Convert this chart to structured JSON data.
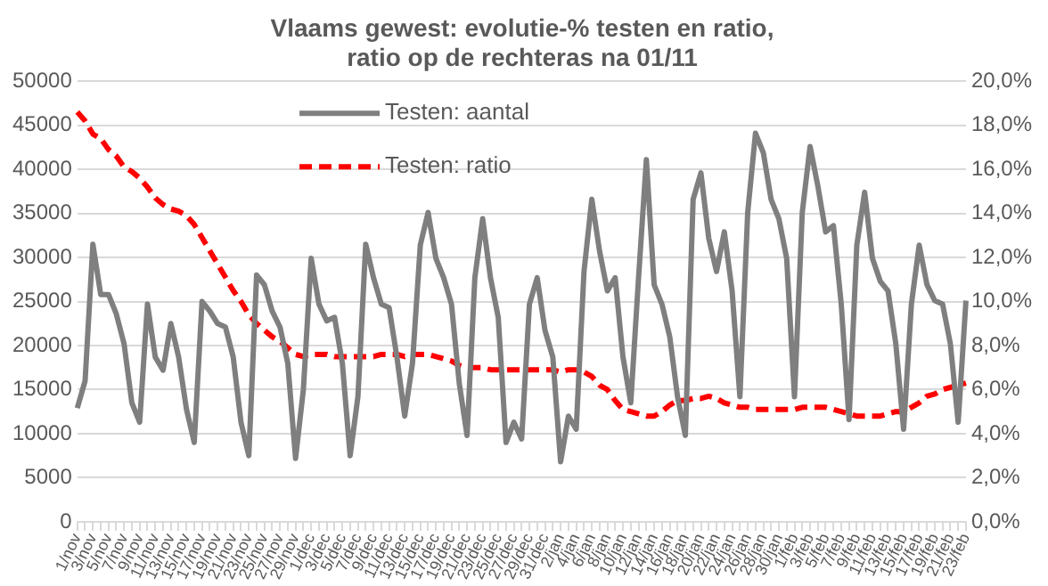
{
  "chart_data": {
    "type": "line",
    "title": "Vlaams gewest: evolutie-% testen en ratio,\nratio op de rechteras na 01/11",
    "categories": [
      "1/nov",
      null,
      "3/nov",
      null,
      "5/nov",
      null,
      "7/nov",
      null,
      "9/nov",
      null,
      "11/nov",
      null,
      "13/nov",
      null,
      "15/nov",
      null,
      "17/nov",
      null,
      "19/nov",
      null,
      "21/nov",
      null,
      "23/nov",
      null,
      "25/nov",
      null,
      "27/nov",
      null,
      "29/nov",
      null,
      "1/dec",
      null,
      "3/dec",
      null,
      "5/dec",
      null,
      "7/dec",
      null,
      "9/dec",
      null,
      "11/dec",
      null,
      "13/dec",
      null,
      "15/dec",
      null,
      "17/dec",
      null,
      "19/dec",
      null,
      "21/dec",
      null,
      "23/dec",
      null,
      "25/dec",
      null,
      "27/dec",
      null,
      "29/dec",
      null,
      "31/dec",
      null,
      "2/jan",
      null,
      "4/jan",
      null,
      "6/jan",
      null,
      "8/jan",
      null,
      "10/jan",
      null,
      "12/jan",
      null,
      "14/jan",
      null,
      "16/jan",
      null,
      "18/jan",
      null,
      "20/jan",
      null,
      "22/jan",
      null,
      "24/jan",
      null,
      "26/jan",
      null,
      "28/jan",
      null,
      "30/jan",
      null,
      "1/feb",
      null,
      "3/feb",
      null,
      "5/feb",
      null,
      "7/feb",
      null,
      "9/feb",
      null,
      "11/feb",
      null,
      "13/feb",
      null,
      "15/feb",
      null,
      "17/feb",
      null,
      "19/feb",
      null,
      "21/feb",
      null,
      "23/feb"
    ],
    "series": [
      {
        "name": "Testen: aantal",
        "color": "#7f7f7f",
        "axis": "y",
        "line_style": "solid",
        "values": [
          12900,
          16000,
          31500,
          25800,
          25800,
          23600,
          20200,
          13500,
          11300,
          24700,
          18700,
          17200,
          22500,
          18700,
          12800,
          9000,
          25000,
          23900,
          22500,
          22100,
          18700,
          11300,
          7500,
          28000,
          26900,
          23900,
          22100,
          18000,
          7200,
          15000,
          29900,
          24700,
          22800,
          23200,
          18000,
          7500,
          14200,
          31500,
          27700,
          24700,
          24300,
          18700,
          12000,
          18000,
          31400,
          35100,
          29900,
          27700,
          24700,
          15700,
          9800,
          27700,
          34400,
          27700,
          23200,
          9000,
          11300,
          9400,
          24700,
          27700,
          21700,
          18700,
          6800,
          12000,
          10500,
          28400,
          36600,
          30700,
          26200,
          27700,
          18700,
          13500,
          27700,
          41100,
          26900,
          24700,
          21000,
          14200,
          9800,
          36600,
          39600,
          32200,
          28400,
          32900,
          26200,
          14200,
          35100,
          44100,
          41900,
          36600,
          34400,
          29900,
          14200,
          35100,
          42600,
          38100,
          32900,
          33600,
          24700,
          11600,
          31400,
          37400,
          29900,
          27300,
          26200,
          20200,
          10500,
          24700,
          31400,
          26900,
          25100,
          24700,
          20200,
          11300,
          25100
        ]
      },
      {
        "name": "Testen: ratio",
        "color": "#ff0000",
        "axis": "y2",
        "line_style": "dashed",
        "values": [
          18.6,
          18.2,
          17.6,
          17.4,
          16.9,
          16.6,
          16.1,
          15.9,
          15.6,
          15.2,
          14.7,
          14.4,
          14.2,
          14.1,
          13.9,
          13.5,
          12.9,
          12.3,
          11.7,
          11.1,
          10.5,
          10.0,
          9.4,
          9.0,
          8.7,
          8.4,
          8.2,
          7.9,
          7.6,
          7.5,
          7.6,
          7.6,
          7.6,
          7.5,
          7.5,
          7.5,
          7.5,
          7.5,
          7.5,
          7.6,
          7.6,
          7.6,
          7.5,
          7.6,
          7.6,
          7.6,
          7.5,
          7.4,
          7.3,
          7.1,
          7.0,
          7.0,
          7.0,
          6.9,
          6.9,
          6.9,
          6.9,
          6.9,
          6.9,
          6.9,
          6.9,
          6.9,
          6.8,
          6.9,
          6.9,
          6.8,
          6.6,
          6.2,
          6.0,
          5.5,
          5.1,
          5.0,
          4.9,
          4.8,
          4.8,
          5.0,
          5.3,
          5.5,
          5.5,
          5.6,
          5.6,
          5.7,
          5.6,
          5.4,
          5.3,
          5.2,
          5.2,
          5.1,
          5.1,
          5.1,
          5.1,
          5.1,
          5.1,
          5.2,
          5.2,
          5.2,
          5.2,
          5.1,
          5.0,
          4.9,
          4.8,
          4.8,
          4.8,
          4.8,
          4.9,
          5.0,
          5.0,
          5.2,
          5.4,
          5.7,
          5.8,
          6.0,
          6.1,
          6.2,
          6.3
        ]
      }
    ],
    "ylim": [
      0,
      50000
    ],
    "yticks": [
      0,
      5000,
      10000,
      15000,
      20000,
      25000,
      30000,
      35000,
      40000,
      45000,
      50000
    ],
    "y2lim": [
      0,
      20
    ],
    "y2ticks": [
      {
        "value": 0,
        "label": "0,0%"
      },
      {
        "value": 2,
        "label": "2,0%"
      },
      {
        "value": 4,
        "label": "4,0%"
      },
      {
        "value": 6,
        "label": "6,0%"
      },
      {
        "value": 8,
        "label": "8,0%"
      },
      {
        "value": 10,
        "label": "10,0%"
      },
      {
        "value": 12,
        "label": "12,0%"
      },
      {
        "value": 14,
        "label": "14,0%"
      },
      {
        "value": 16,
        "label": "16,0%"
      },
      {
        "value": 18,
        "label": "18,0%"
      },
      {
        "value": 20,
        "label": "20,0%"
      }
    ],
    "grid": "y",
    "legend": "top",
    "marker": "none"
  }
}
